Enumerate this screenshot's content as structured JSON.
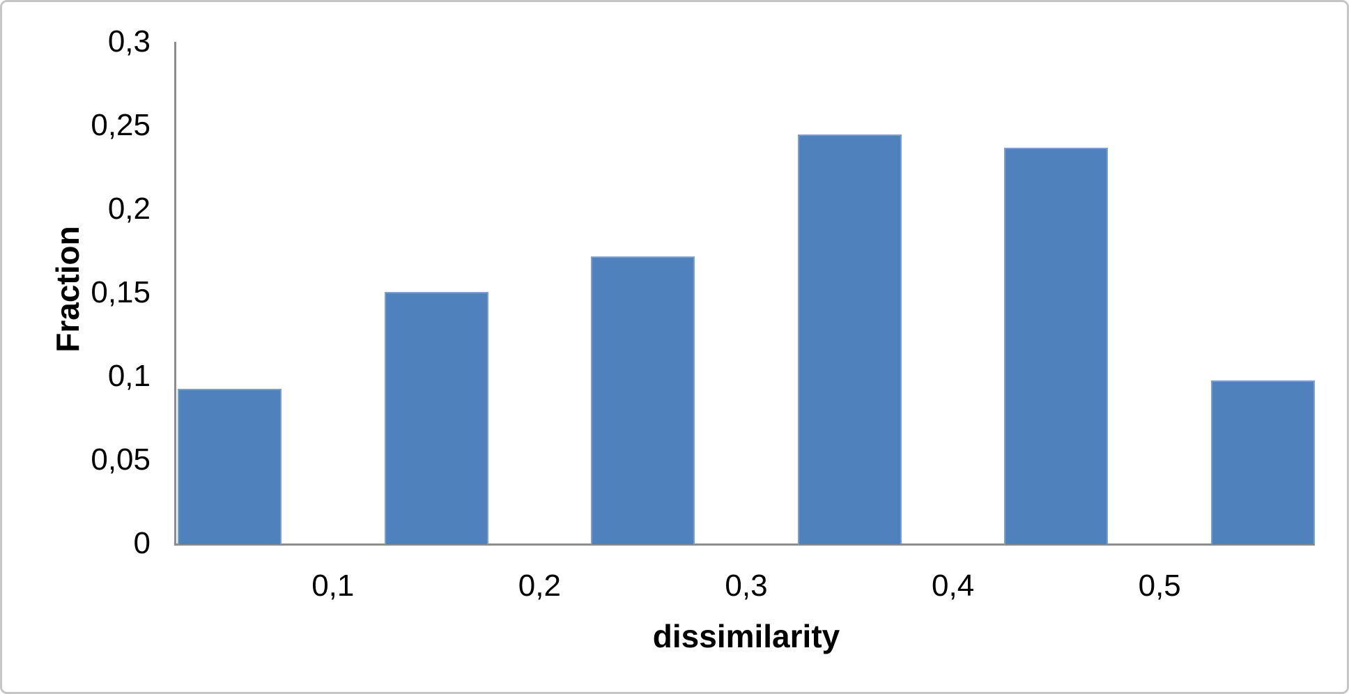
{
  "chart_data": {
    "type": "bar",
    "title": "",
    "xlabel": "dissimilarity",
    "ylabel": "Fraction",
    "values": [
      0.093,
      0.151,
      0.172,
      0.245,
      0.237,
      0.098
    ],
    "x_tick_labels": [
      "0,1",
      "0,2",
      "0,3",
      "0,4",
      "0,5"
    ],
    "y_ticks": [
      {
        "label": "0",
        "value": 0
      },
      {
        "label": "0,05",
        "value": 0.05
      },
      {
        "label": "0,1",
        "value": 0.1
      },
      {
        "label": "0,15",
        "value": 0.15
      },
      {
        "label": "0,2",
        "value": 0.2
      },
      {
        "label": "0,25",
        "value": 0.25
      },
      {
        "label": "0,3",
        "value": 0.3
      }
    ],
    "ylim": [
      0,
      0.3
    ],
    "grid": "off",
    "legend": "none",
    "decimal_separator": ",",
    "bar_color": "#4f81bd",
    "bar_edge_color": "#7ba0cf",
    "axis_color": "#8c8c8c",
    "frame_border_color": "#c6c6c6",
    "background_color": "#ffffff"
  }
}
